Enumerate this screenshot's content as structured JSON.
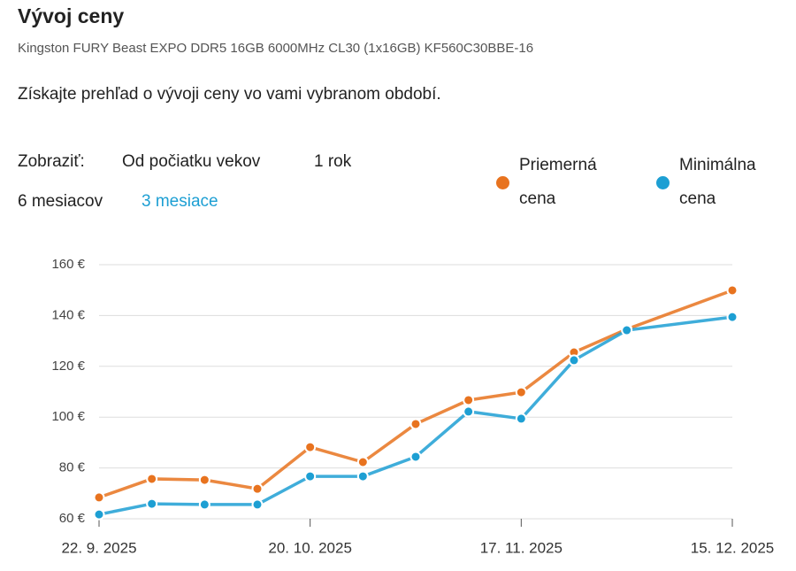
{
  "header": {
    "title": "Vývoj ceny",
    "subtitle": "Kingston FURY Beast EXPO DDR5 16GB 6000MHz CL30 (1x16GB) KF560C30BBE-16",
    "description": "Získajte prehľad o vývoji ceny vo vami vybranom období."
  },
  "filters": {
    "label": "Zobraziť:",
    "options": [
      "Od počiatku vekov",
      "1 rok",
      "6 mesiacov",
      "3 mesiace"
    ],
    "active": "3 mesiace"
  },
  "chart_data": {
    "type": "line",
    "x": [
      "2025-09-22",
      "2025-09-29",
      "2025-10-06",
      "2025-10-13",
      "2025-10-20",
      "2025-10-27",
      "2025-11-03",
      "2025-11-10",
      "2025-11-17",
      "2025-11-24",
      "2025-12-01",
      "2025-12-15"
    ],
    "series": [
      {
        "name": "Priemerná cena",
        "color": "#e8731f",
        "values": [
          68.4,
          75.7,
          75.3,
          71.8,
          88.2,
          82.3,
          97.3,
          106.7,
          109.8,
          125.5,
          134.6,
          149.9
        ]
      },
      {
        "name": "Minimálna cena",
        "color": "#1d9fd3",
        "values": [
          61.7,
          65.9,
          65.6,
          65.6,
          76.7,
          76.7,
          84.4,
          102.2,
          99.4,
          122.4,
          134.2,
          139.4
        ]
      }
    ],
    "xlim": [
      "2025-09-22",
      "2025-12-15"
    ],
    "xticks": [
      {
        "value": "2025-09-22",
        "label": "22. 9. 2025"
      },
      {
        "value": "2025-10-20",
        "label": "20. 10. 2025"
      },
      {
        "value": "2025-11-17",
        "label": "17. 11. 2025"
      },
      {
        "value": "2025-12-15",
        "label": "15. 12. 2025"
      }
    ],
    "ylim": [
      60,
      160
    ],
    "yticks": [
      {
        "value": 60,
        "label": "60 €"
      },
      {
        "value": 80,
        "label": "80 €"
      },
      {
        "value": 100,
        "label": "100 €"
      },
      {
        "value": 120,
        "label": "120 €"
      },
      {
        "value": 140,
        "label": "140 €"
      },
      {
        "value": 160,
        "label": "160 €"
      }
    ],
    "grid": true
  }
}
